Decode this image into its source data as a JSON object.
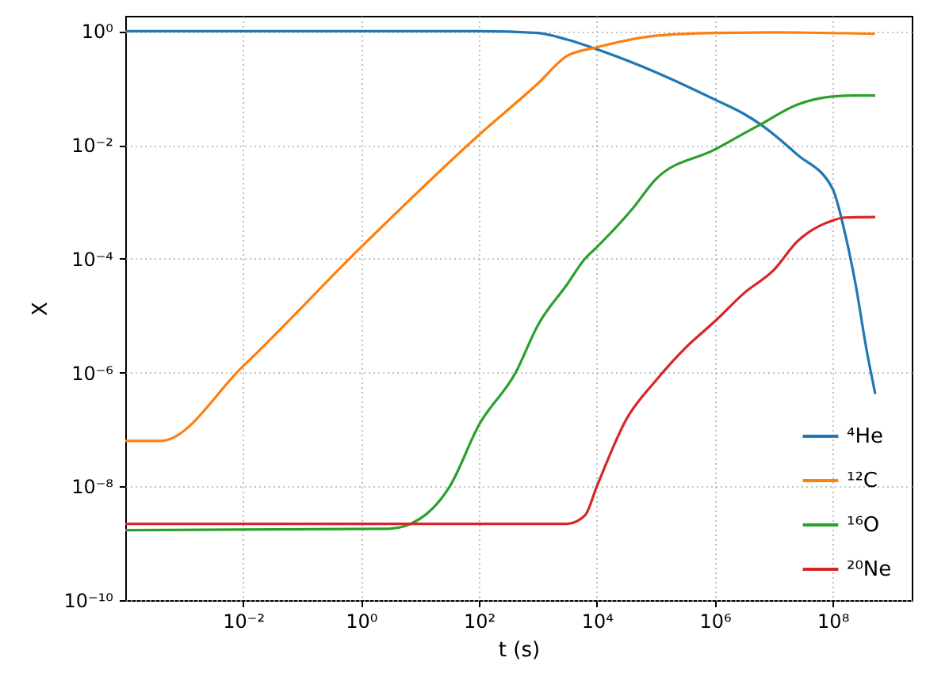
{
  "chart_data": {
    "type": "line",
    "xlabel": "t (s)",
    "ylabel": "X",
    "log": "xy",
    "grid": true,
    "legend": "bottom right",
    "marker": "none",
    "line_style": "solid",
    "xlim": [
      0.0001,
      2200000000
    ],
    "ylim": [
      1e-10,
      1.86
    ],
    "xticks": [
      {
        "value": 0.01,
        "label": "10⁻²"
      },
      {
        "value": 1,
        "label": "10⁰"
      },
      {
        "value": 100,
        "label": "10²"
      },
      {
        "value": 10000,
        "label": "10⁴"
      },
      {
        "value": 1000000,
        "label": "10⁶"
      },
      {
        "value": 100000000,
        "label": "10⁸"
      }
    ],
    "yticks": [
      {
        "value": 1e-10,
        "label": "10⁻¹⁰"
      },
      {
        "value": 1e-08,
        "label": "10⁻⁸"
      },
      {
        "value": 1e-06,
        "label": "10⁻⁶"
      },
      {
        "value": 0.0001,
        "label": "10⁻⁴"
      },
      {
        "value": 0.01,
        "label": "10⁻²"
      },
      {
        "value": 1,
        "label": "10⁰"
      }
    ],
    "series": [
      {
        "name": "⁴He",
        "color": "#1f77b4",
        "x": [
          0.0001,
          1,
          100,
          1000,
          3162,
          10000,
          100000,
          1000000,
          3160000,
          6000000,
          25000000,
          100000000,
          160000000,
          245000000,
          370000000,
          530000000
        ],
        "values": [
          1,
          1,
          1,
          0.93,
          0.71,
          0.48,
          0.19,
          0.063,
          0.035,
          0.023,
          0.0068,
          0.0017,
          0.0003,
          3.6e-05,
          2.8e-06,
          4.2e-07
        ]
      },
      {
        "name": "¹²C",
        "color": "#ff7f0e",
        "x": [
          0.0001,
          0.0004,
          0.01,
          1,
          100,
          1000,
          3162,
          10000,
          100000,
          1000000,
          10000000,
          520000000
        ],
        "values": [
          6.3e-08,
          6.3e-08,
          1.3e-06,
          0.00016,
          0.015,
          0.12,
          0.37,
          0.52,
          0.83,
          0.93,
          0.95,
          0.9
        ]
      },
      {
        "name": "¹⁶O",
        "color": "#2ca02c",
        "x": [
          0.0001,
          3,
          10,
          16,
          32,
          100,
          420,
          1000,
          3162,
          6300,
          10000,
          42000,
          100000,
          1000000,
          3160000,
          6000000,
          25000000,
          100000000,
          250000000,
          530000000
        ],
        "values": [
          1.7e-09,
          1.8e-09,
          2.7e-09,
          4e-09,
          1e-08,
          1.2e-07,
          1e-06,
          6.8e-06,
          3.6e-05,
          0.0001,
          0.00016,
          0.0008,
          0.0025,
          0.0083,
          0.016,
          0.023,
          0.051,
          0.071,
          0.074,
          0.074
        ]
      },
      {
        "name": "²⁰Ne",
        "color": "#d62728",
        "x": [
          0.0001,
          3162,
          6310,
          10000,
          31620,
          100000,
          316200,
          1000000,
          3160000,
          10000000,
          25000000,
          100000000,
          160000000,
          530000000
        ],
        "values": [
          2.2e-09,
          2.2e-09,
          3.1e-09,
          1e-08,
          1.5e-07,
          7.2e-07,
          2.7e-06,
          7.9e-06,
          2.5e-05,
          6.3e-05,
          0.0002,
          0.00047,
          0.00053,
          0.00054
        ]
      }
    ]
  }
}
